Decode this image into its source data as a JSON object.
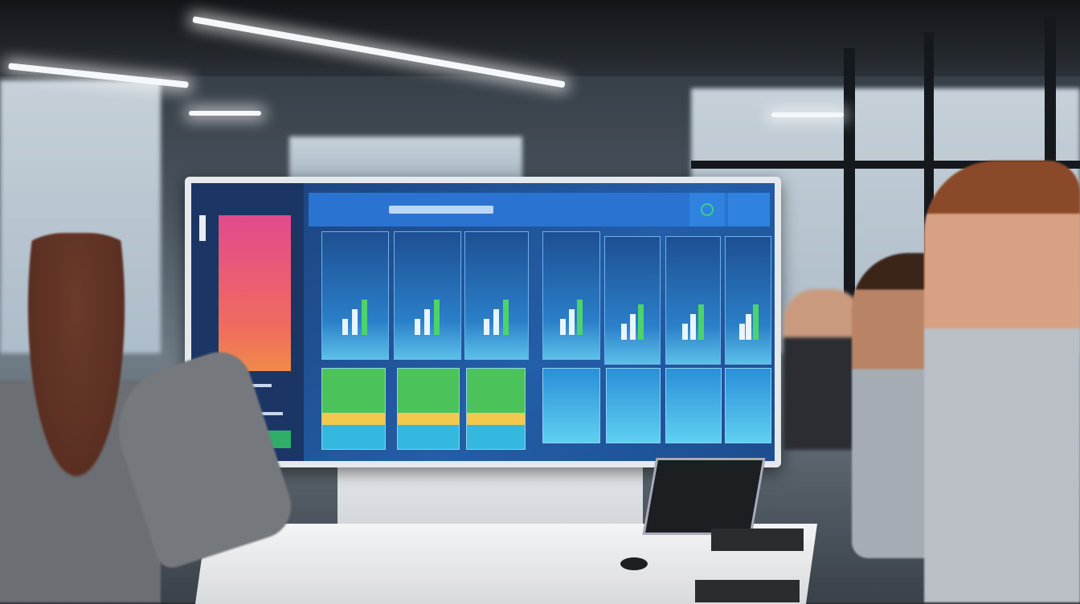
{
  "scene": {
    "description_tags": [
      "office",
      "dashboard-monitor",
      "people"
    ],
    "colors": {
      "screen_blue": "#235ea8",
      "header_blue": "#2a73d0",
      "sidebar_panel_pink": "#e24a8e",
      "sidebar_panel_orange": "#f08a4a",
      "button_green": "#2fae6a",
      "card_green": "#4cc35a"
    }
  }
}
